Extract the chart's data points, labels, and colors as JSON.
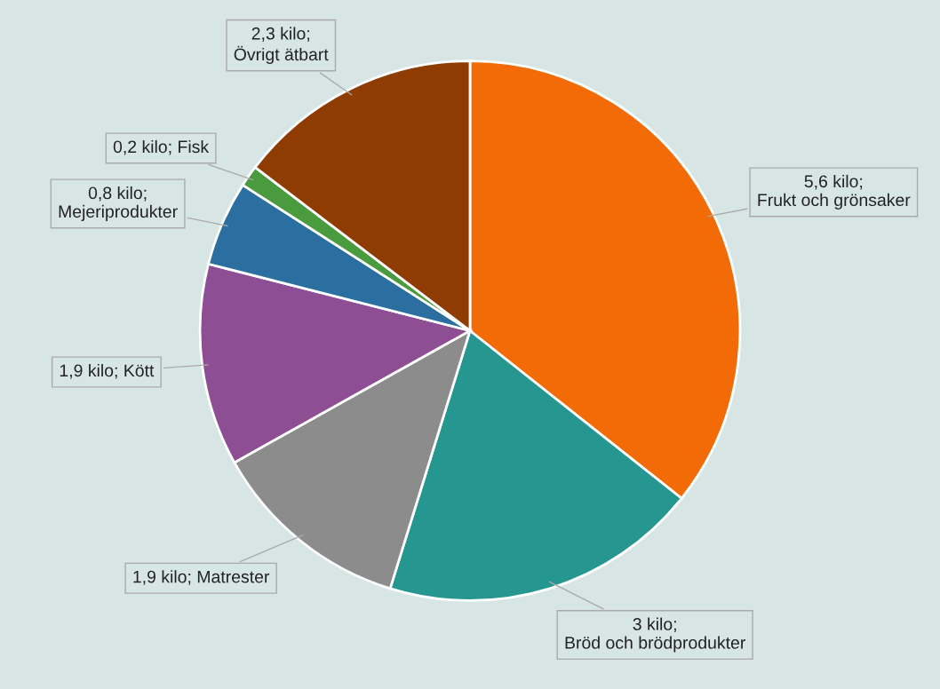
{
  "chart_data": {
    "type": "pie",
    "categories": [
      "Frukt och grönsaker",
      "Bröd och brödprodukter",
      "Matrester",
      "Kött",
      "Mejeriprodukter",
      "Fisk",
      "Övrigt ätbart"
    ],
    "values": [
      5.6,
      3,
      1.9,
      1.9,
      0.8,
      0.2,
      2.3
    ],
    "value_labels": [
      "5,6 kilo;",
      "3 kilo;",
      "1,9 kilo;",
      "1,9 kilo;",
      "0,8 kilo;",
      "0,2 kilo;",
      "2,3 kilo;"
    ],
    "colors": [
      "#f26b07",
      "#259690",
      "#8c8c8c",
      "#8e4e93",
      "#2a6fa0",
      "#4a9a3e",
      "#8f3c03"
    ],
    "legend": false
  }
}
